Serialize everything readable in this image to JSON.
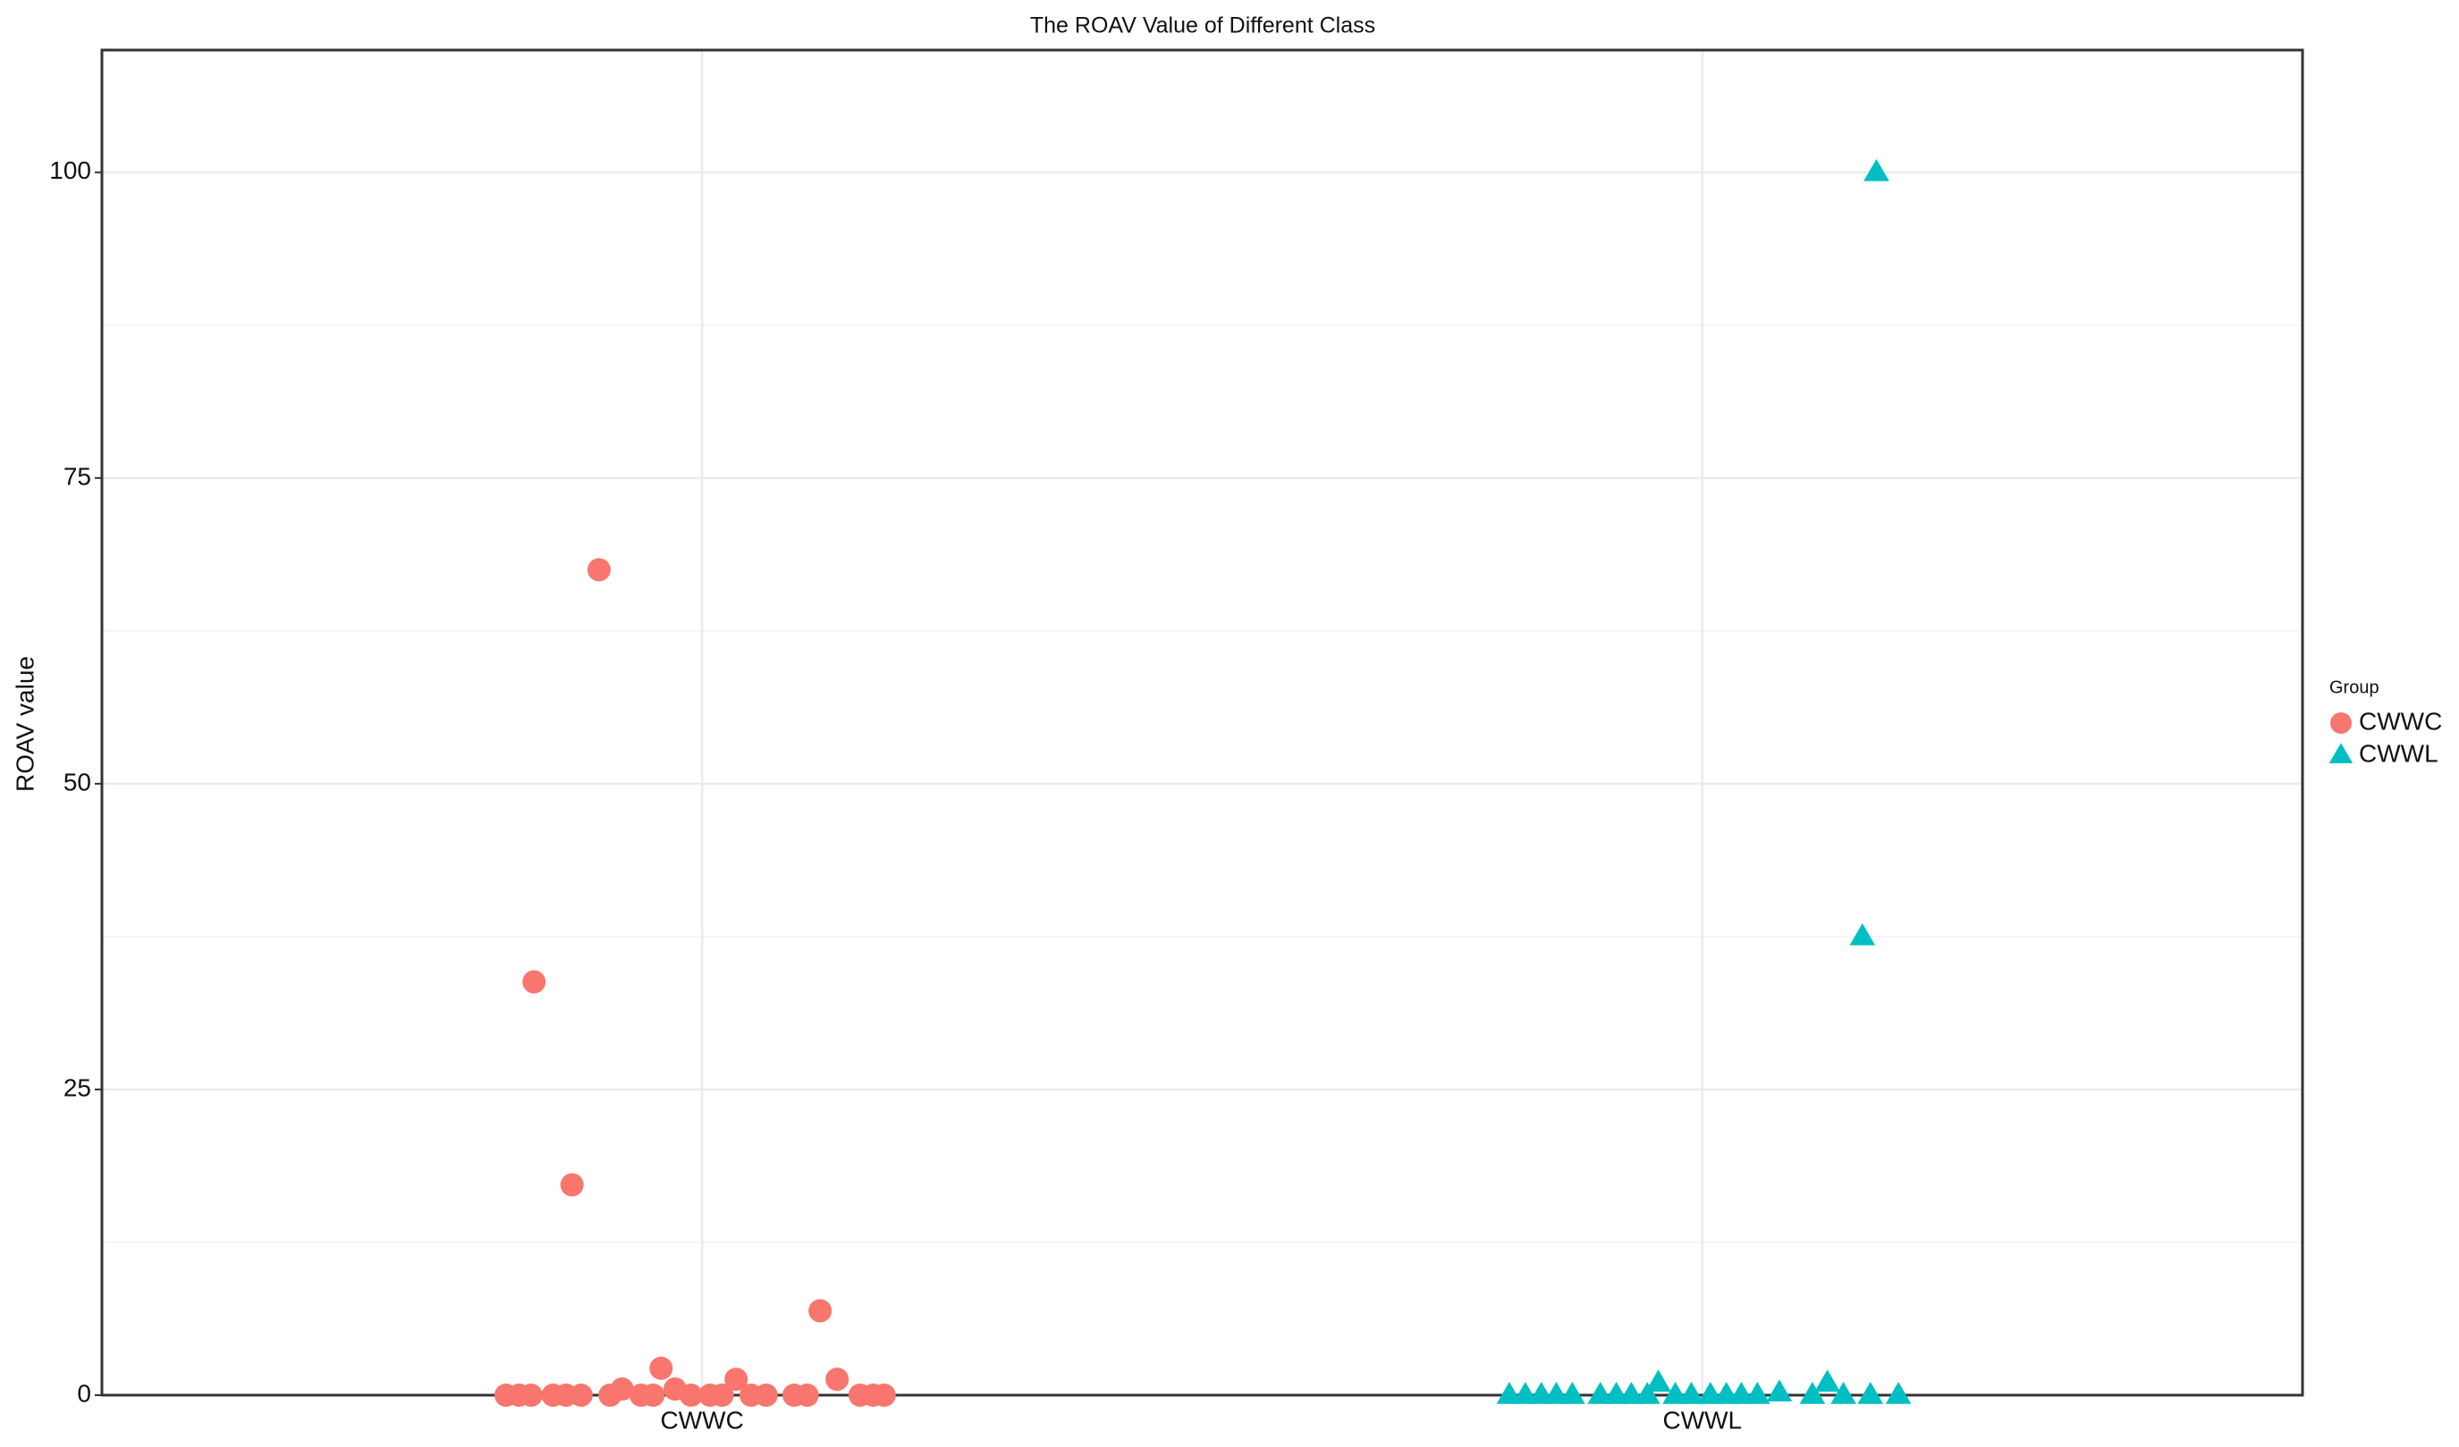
{
  "chart_data": {
    "type": "scatter",
    "title": "The ROAV Value of Different Class",
    "y_label": "ROAV value",
    "legend_title": "Group",
    "legend_position": "right",
    "grid": true,
    "xlim": [
      0.4,
      2.6
    ],
    "xticks": [
      {
        "value": 1,
        "label": "CWWC"
      },
      {
        "value": 2,
        "label": "CWWL"
      }
    ],
    "ylim": [
      0,
      110
    ],
    "yticks": [
      0,
      25,
      50,
      75,
      100
    ],
    "minor_yticks": [
      12.5,
      37.5,
      62.5,
      87.5
    ],
    "series": [
      {
        "name": "CWWC",
        "color": "#F8766D",
        "marker": "circle",
        "x": [
          0.832,
          0.87,
          0.897,
          1.118,
          0.959,
          1.034,
          1.135,
          0.92,
          0.973,
          0.804,
          0.817,
          0.829,
          0.851,
          0.864,
          0.879,
          0.908,
          0.939,
          0.951,
          0.989,
          1.008,
          1.02,
          1.049,
          1.064,
          1.092,
          1.105,
          1.158,
          1.171,
          1.182
        ],
        "values": [
          33.8,
          17.2,
          67.5,
          6.9,
          2.2,
          1.3,
          1.3,
          0.5,
          0.5,
          0,
          0,
          0,
          0,
          0,
          0,
          0,
          0,
          0,
          0,
          0,
          0,
          0,
          0,
          0,
          0,
          0,
          0,
          0
        ]
      },
      {
        "name": "CWWL",
        "color": "#00BFC4",
        "marker": "triangle",
        "x": [
          2.174,
          2.16,
          1.956,
          2.125,
          2.077,
          1.807,
          1.823,
          1.839,
          1.854,
          1.87,
          1.898,
          1.914,
          1.929,
          1.945,
          1.973,
          1.989,
          2.008,
          2.024,
          2.039,
          2.055,
          2.11,
          2.141,
          2.168,
          2.196
        ],
        "values": [
          100,
          37.5,
          1,
          1,
          0.2,
          0,
          0,
          0,
          0,
          0,
          0,
          0,
          0,
          0,
          0,
          0,
          0,
          0,
          0,
          0,
          0,
          0,
          0,
          0
        ]
      }
    ]
  }
}
